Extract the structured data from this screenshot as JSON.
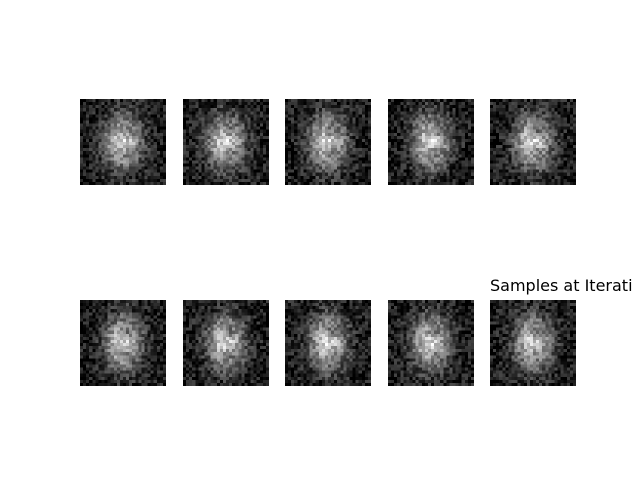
{
  "figure": {
    "caption": "Samples at Iterati",
    "sample_count": 10,
    "colormap": "gray"
  }
}
